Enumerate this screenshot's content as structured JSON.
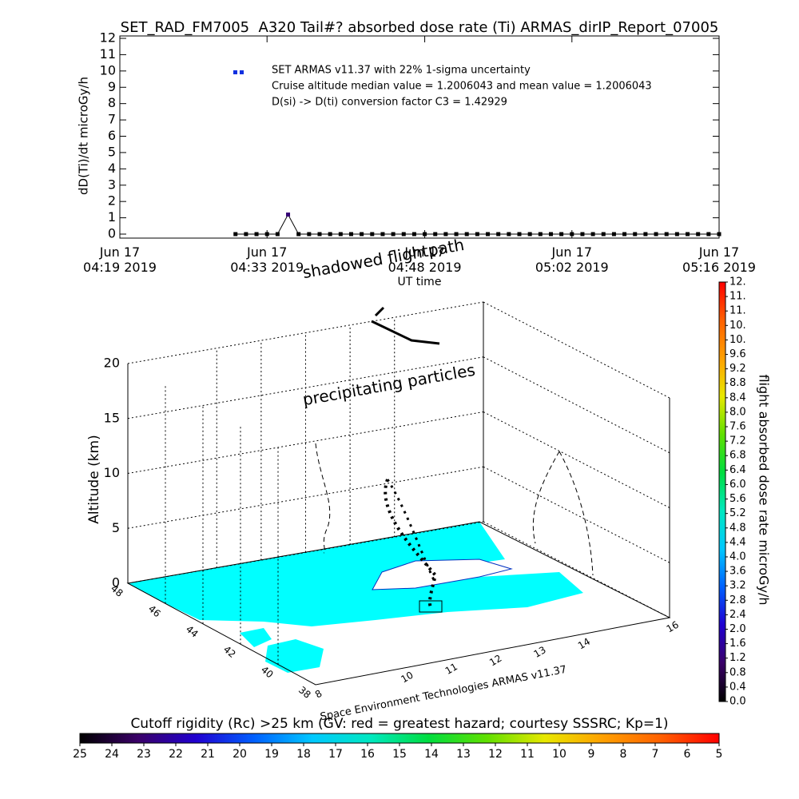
{
  "chart_data": [
    {
      "type": "line",
      "title": "SET_RAD_FM7005  A320 Tail#? absorbed dose rate (Ti) ARMAS_dirIP_Report_07005",
      "ylabel": "dD(Ti)/dt microGy/h",
      "xlabel": "UT time",
      "xlim": [
        "04:19",
        "05:16"
      ],
      "xticks": [
        {
          "value": "04:19",
          "label": "Jun 17\n04:19 2019"
        },
        {
          "value": "04:33",
          "label": "Jun 17\n04:33 2019"
        },
        {
          "value": "04:48",
          "label": "Jun 17\n04:48 2019"
        },
        {
          "value": "05:02",
          "label": "Jun 17\n05:02 2019"
        },
        {
          "value": "05:16",
          "label": "Jun 17\n05:16 2019"
        }
      ],
      "ylim": [
        0,
        12
      ],
      "yticks": [
        0,
        1,
        2,
        3,
        4,
        5,
        6,
        7,
        8,
        9,
        10,
        11,
        12
      ],
      "x": [
        "04:30",
        "04:31",
        "04:32",
        "04:33",
        "04:34",
        "04:35",
        "04:36",
        "04:37",
        "04:38",
        "04:39",
        "04:40",
        "04:41",
        "04:42",
        "04:43",
        "04:44",
        "04:45",
        "04:46",
        "04:47",
        "04:48",
        "04:49",
        "04:50",
        "04:51",
        "04:52",
        "04:53",
        "04:54",
        "04:55",
        "04:56",
        "04:57",
        "04:58",
        "04:59",
        "05:00",
        "05:01",
        "05:02",
        "05:03",
        "05:04",
        "05:05",
        "05:06",
        "05:07",
        "05:08",
        "05:09",
        "05:10",
        "05:11",
        "05:12",
        "05:13",
        "05:14",
        "05:15",
        "05:16"
      ],
      "series": [
        {
          "name": "SET ARMAS v11.37 with 22% 1-sigma uncertainty",
          "color": "#1030e0",
          "values": [
            0,
            0,
            0,
            0,
            0,
            1.2,
            0,
            0,
            0,
            0,
            0,
            0,
            0,
            0,
            0,
            0,
            0,
            0,
            0,
            0,
            0,
            0,
            0,
            0,
            0,
            0,
            0,
            0,
            0,
            0,
            0,
            0,
            0,
            0,
            0,
            0,
            0,
            0,
            0,
            0,
            0,
            0,
            0,
            0,
            0,
            0,
            0
          ]
        }
      ],
      "annotations": [
        "Cruise altitude median value = 1.2006043 and mean value = 1.2006043",
        "D(si) -> D(ti) conversion factor C3 = 1.42929"
      ]
    },
    {
      "type": "3d-flight",
      "zlabel": "Altitude (km)",
      "zlim": [
        0,
        20
      ],
      "zticks": [
        0,
        5,
        10,
        15,
        20
      ],
      "ylim": [
        48,
        38
      ],
      "yticks": [
        48,
        46,
        44,
        42,
        40,
        38
      ],
      "xlim": [
        8,
        16
      ],
      "xticks": [
        8,
        10,
        11,
        12,
        13,
        14,
        16
      ],
      "annotations": [
        "shadowed flightpath",
        "precipitating particles"
      ],
      "credit": "Space Environment Technologies ARMAS v11.37"
    },
    {
      "type": "colorbar",
      "orientation": "vertical",
      "title": "flight absorbed dose rate microGy/h",
      "lim": [
        0,
        11.6
      ],
      "ticks": [
        {
          "value": 0,
          "label": "0.0"
        },
        0.4,
        0.8,
        1.2,
        1.6,
        {
          "value": 2,
          "label": "2.0"
        },
        2.4,
        2.8,
        3.2,
        3.6,
        {
          "value": 4,
          "label": "4.0"
        },
        4.4,
        4.8,
        5.2,
        5.6,
        {
          "value": 6,
          "label": "6.0"
        },
        6.4,
        6.8,
        7.2,
        7.6,
        {
          "value": 8,
          "label": "8.0"
        },
        8.4,
        8.8,
        9.2,
        9.6,
        {
          "value": 10,
          "label": "10."
        },
        {
          "value": 10.4,
          "label": "10."
        },
        {
          "value": 10.8,
          "label": "11."
        },
        {
          "value": 11.2,
          "label": "11."
        },
        {
          "value": 11.6,
          "label": "12."
        }
      ],
      "colors": [
        "#000000",
        "#3a0068",
        "#2000d0",
        "#0060ff",
        "#00c8ff",
        "#00e8c0",
        "#00dd40",
        "#60e000",
        "#e8e800",
        "#ffa000",
        "#ff6000",
        "#ff0000"
      ]
    },
    {
      "type": "colorbar",
      "orientation": "horizontal",
      "title": "Cutoff rigidity (Rc) >25 km (GV: red = greatest hazard; courtesy SSSRC; Kp=1)",
      "lim": [
        25,
        5
      ],
      "ticks": [
        25,
        24,
        23,
        22,
        21,
        20,
        19,
        18,
        17,
        16,
        15,
        14,
        13,
        12,
        11,
        10,
        9,
        8,
        7,
        6,
        5
      ],
      "colors": [
        "#000000",
        "#3a0068",
        "#2000d0",
        "#0060ff",
        "#00c8ff",
        "#00e8c0",
        "#00dd40",
        "#60e000",
        "#e8e800",
        "#ffa000",
        "#ff6000",
        "#ff0000"
      ]
    }
  ]
}
